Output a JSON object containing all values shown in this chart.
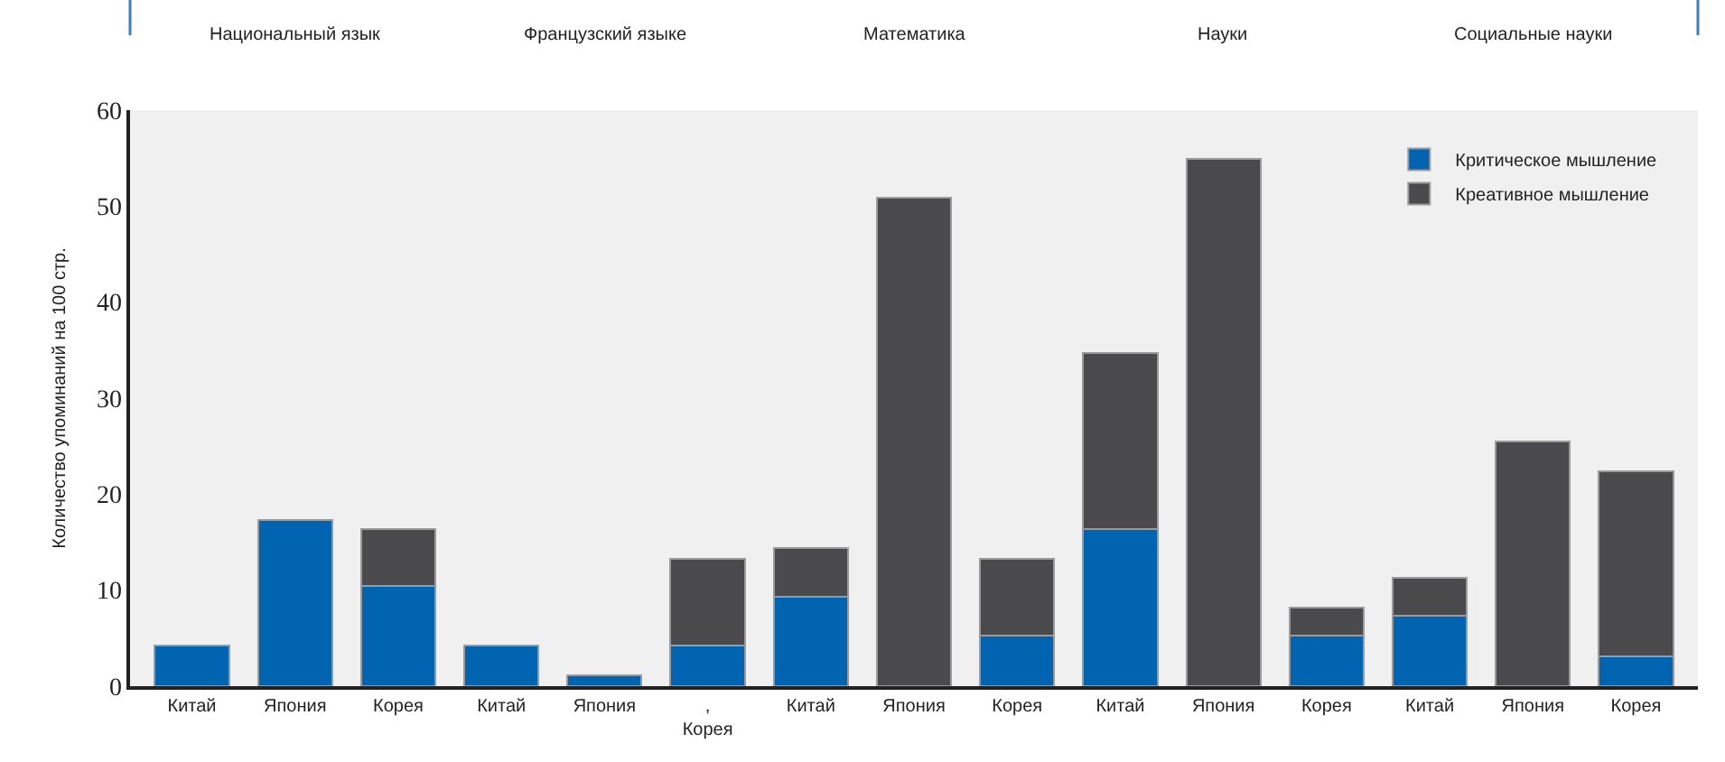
{
  "chart_data": {
    "type": "bar",
    "stacked": true,
    "ylabel": "Количество упоминаний на 100 стр.",
    "categories": [
      "Китай",
      "Япония",
      "Корея",
      "Китай",
      "Япония",
      ",\nКорея",
      "Китай",
      "Япония",
      "Корея",
      "Китай",
      "Япония",
      "Корея",
      "Китай",
      "Япония",
      "Корея"
    ],
    "series": [
      {
        "name": "Критическое мышление",
        "color": "#0064b0",
        "values": [
          4.2,
          17.3,
          10.4,
          4.2,
          1.1,
          4.2,
          9.3,
          null,
          5.3,
          16.4,
          null,
          5.3,
          7.3,
          null,
          3.1
        ]
      },
      {
        "name": "Креативное мышление",
        "color": "#4a4a4c",
        "values": [
          null,
          null,
          6.0,
          null,
          null,
          9.1,
          5.1,
          50.9,
          8.0,
          18.3,
          54.9,
          2.9,
          4.0,
          25.5,
          19.3
        ]
      }
    ],
    "annotations": [
      "Национальный язык",
      "Французский языке",
      "Математика",
      "Науки",
      "Социальные науки"
    ],
    "ylim": [
      0,
      60
    ],
    "yticks": [
      0,
      10,
      20,
      30,
      40,
      50,
      60
    ],
    "grid": false,
    "legend": "top right"
  }
}
